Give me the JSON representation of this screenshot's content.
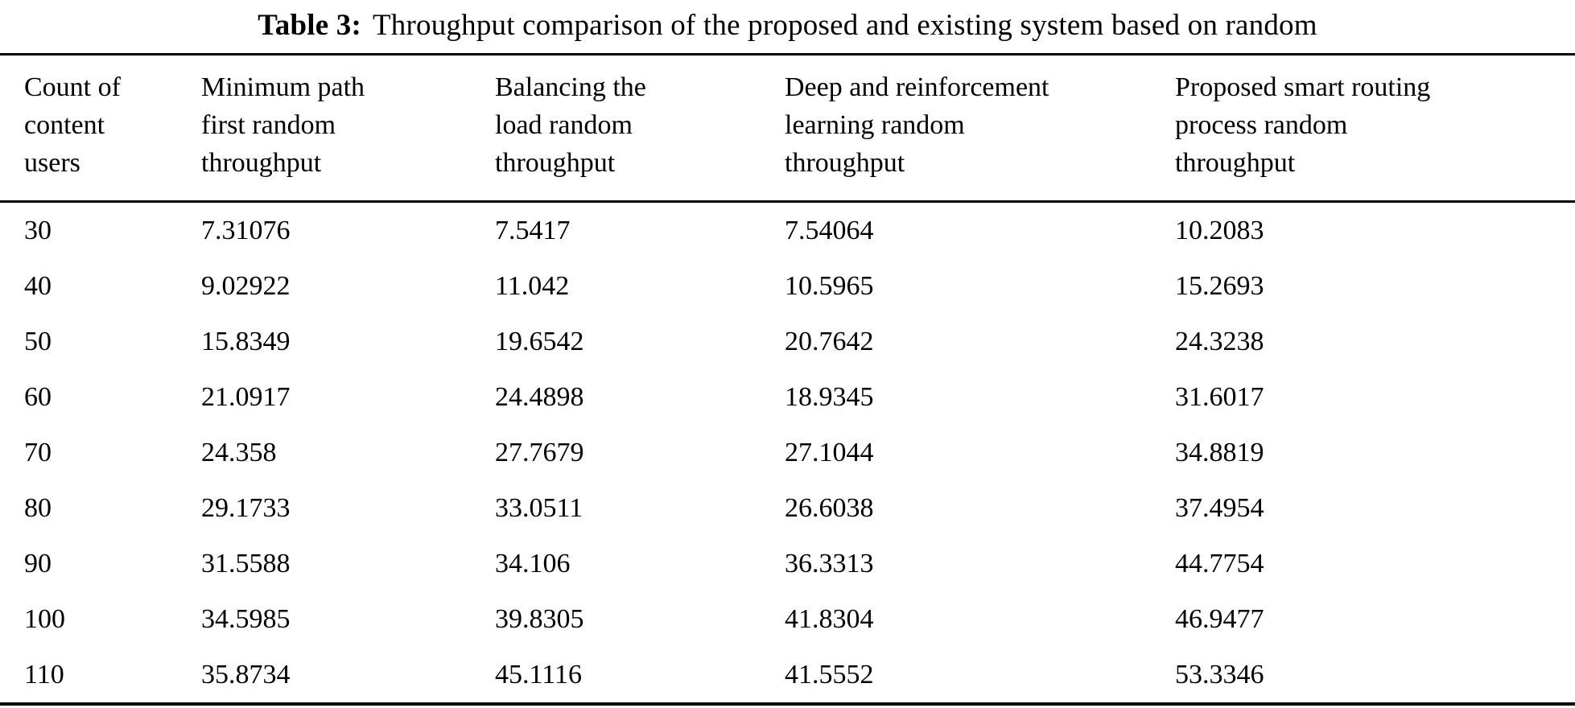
{
  "caption": {
    "label": "Table 3:",
    "text": "Throughput comparison of the proposed and existing system based on random"
  },
  "table": {
    "columns": [
      "Count of\ncontent\nusers",
      "Minimum path\nfirst random\nthroughput",
      "Balancing the\nload random\nthroughput",
      "Deep and reinforcement\nlearning random\nthroughput",
      "Proposed smart routing\nprocess random\nthroughput"
    ],
    "rows": [
      [
        "30",
        "7.31076",
        "7.5417",
        "7.54064",
        "10.2083"
      ],
      [
        "40",
        "9.02922",
        "11.042",
        "10.5965",
        "15.2693"
      ],
      [
        "50",
        "15.8349",
        "19.6542",
        "20.7642",
        "24.3238"
      ],
      [
        "60",
        "21.0917",
        "24.4898",
        "18.9345",
        "31.6017"
      ],
      [
        "70",
        "24.358",
        "27.7679",
        "27.1044",
        "34.8819"
      ],
      [
        "80",
        "29.1733",
        "33.0511",
        "26.6038",
        "37.4954"
      ],
      [
        "90",
        "31.5588",
        "34.106",
        "36.3313",
        "44.7754"
      ],
      [
        "100",
        "34.5985",
        "39.8305",
        "41.8304",
        "46.9477"
      ],
      [
        "110",
        "35.8734",
        "45.1116",
        "41.5552",
        "53.3346"
      ]
    ]
  },
  "colors": {
    "text": "#000000",
    "background": "#ffffff",
    "rule": "#000000"
  }
}
